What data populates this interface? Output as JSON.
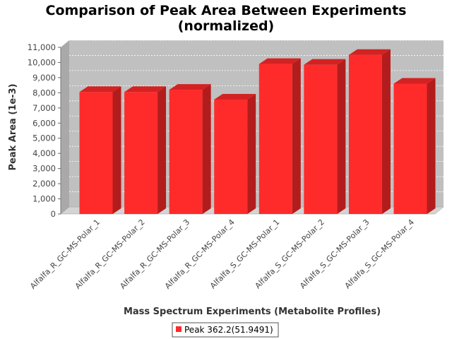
{
  "chart_data": {
    "type": "bar",
    "title": [
      "Comparison of Peak Area Between Experiments",
      "(normalized)"
    ],
    "xlabel": "Mass Spectrum Experiments (Metabolite Profiles)",
    "ylabel": "Peak Area (1e-3)",
    "ylim": [
      0,
      11000
    ],
    "yticks": [
      0,
      1000,
      2000,
      3000,
      4000,
      5000,
      6000,
      7000,
      8000,
      9000,
      10000,
      11000
    ],
    "ytick_labels": [
      "0",
      "1,000",
      "2,000",
      "3,000",
      "4,000",
      "5,000",
      "6,000",
      "7,000",
      "8,000",
      "9,000",
      "10,000",
      "11,000"
    ],
    "categories": [
      "Alfalfa_R_GC-MS-Polar_1",
      "Alfalfa_R_GC-MS-Polar_2",
      "Alfalfa_R_GC-MS-Polar_3",
      "Alfalfa_R_GC-MS-Polar_4",
      "Alfalfa_S_GC-MS-Polar_1",
      "Alfalfa_S_GC-MS-Polar_2",
      "Alfalfa_S_GC-MS-Polar_3",
      "Alfalfa_S_GC-MS-Polar_4"
    ],
    "series": [
      {
        "name": "Peak 362.2(51.9491)",
        "color": "#ff2b2b",
        "values": [
          8050,
          8050,
          8200,
          7550,
          9900,
          9850,
          10500,
          8600
        ]
      }
    ],
    "grid": true,
    "legend_position": "bottom",
    "plot_background": "#c0c0c0",
    "render_3d": true
  }
}
